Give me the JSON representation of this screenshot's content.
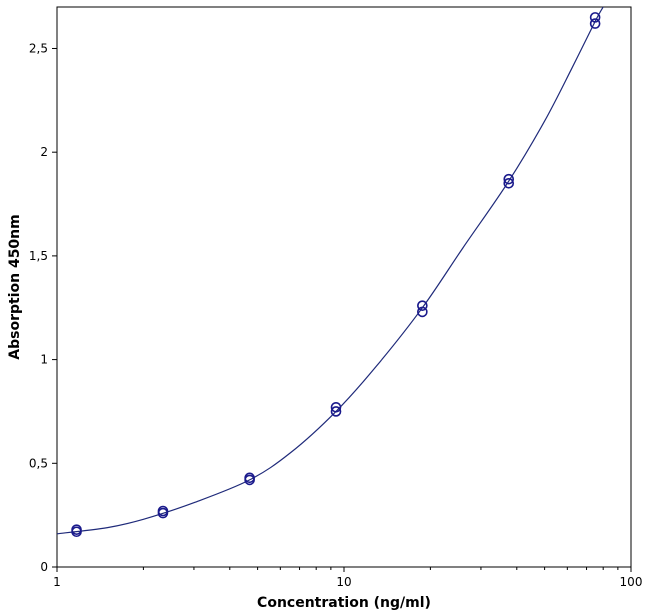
{
  "chart_data": {
    "type": "scatter",
    "title": "",
    "xlabel": "Concentration (ng/ml)",
    "ylabel": "Absorption 450nm",
    "x_scale": "log",
    "xlim": [
      1,
      100
    ],
    "ylim": [
      0,
      2.7
    ],
    "grid": false,
    "x_ticks": [
      {
        "value": 1,
        "label": "1"
      },
      {
        "value": 10,
        "label": "10"
      },
      {
        "value": 100,
        "label": "100"
      }
    ],
    "y_ticks": [
      {
        "value": 0,
        "label": "0"
      },
      {
        "value": 0.5,
        "label": "0,5"
      },
      {
        "value": 1,
        "label": "1"
      },
      {
        "value": 1.5,
        "label": "1,5"
      },
      {
        "value": 2,
        "label": "2"
      },
      {
        "value": 2.5,
        "label": "2,5"
      }
    ],
    "series": [
      {
        "points": [
          {
            "x": 1.17,
            "y": 0.17
          },
          {
            "x": 1.17,
            "y": 0.18
          },
          {
            "x": 2.34,
            "y": 0.26
          },
          {
            "x": 2.34,
            "y": 0.27
          },
          {
            "x": 4.69,
            "y": 0.42
          },
          {
            "x": 4.69,
            "y": 0.43
          },
          {
            "x": 9.38,
            "y": 0.75
          },
          {
            "x": 9.38,
            "y": 0.77
          },
          {
            "x": 18.75,
            "y": 1.23
          },
          {
            "x": 18.75,
            "y": 1.26
          },
          {
            "x": 37.5,
            "y": 1.85
          },
          {
            "x": 37.5,
            "y": 1.87
          },
          {
            "x": 75,
            "y": 2.62
          },
          {
            "x": 75,
            "y": 2.65
          }
        ]
      }
    ],
    "fit_curve": {
      "type": "line",
      "points": [
        {
          "x": 1,
          "y": 0.16
        },
        {
          "x": 1.5,
          "y": 0.19
        },
        {
          "x": 2,
          "y": 0.23
        },
        {
          "x": 3,
          "y": 0.31
        },
        {
          "x": 4.69,
          "y": 0.42
        },
        {
          "x": 6.5,
          "y": 0.55
        },
        {
          "x": 9.38,
          "y": 0.75
        },
        {
          "x": 13,
          "y": 0.97
        },
        {
          "x": 18.75,
          "y": 1.25
        },
        {
          "x": 26,
          "y": 1.54
        },
        {
          "x": 37.5,
          "y": 1.86
        },
        {
          "x": 50,
          "y": 2.15
        },
        {
          "x": 62,
          "y": 2.4
        },
        {
          "x": 75,
          "y": 2.63
        },
        {
          "x": 80,
          "y": 2.7
        }
      ]
    },
    "colors": {
      "series": "#1a1a8c",
      "curve": "#1f2a7a",
      "axis": "#000000"
    }
  }
}
